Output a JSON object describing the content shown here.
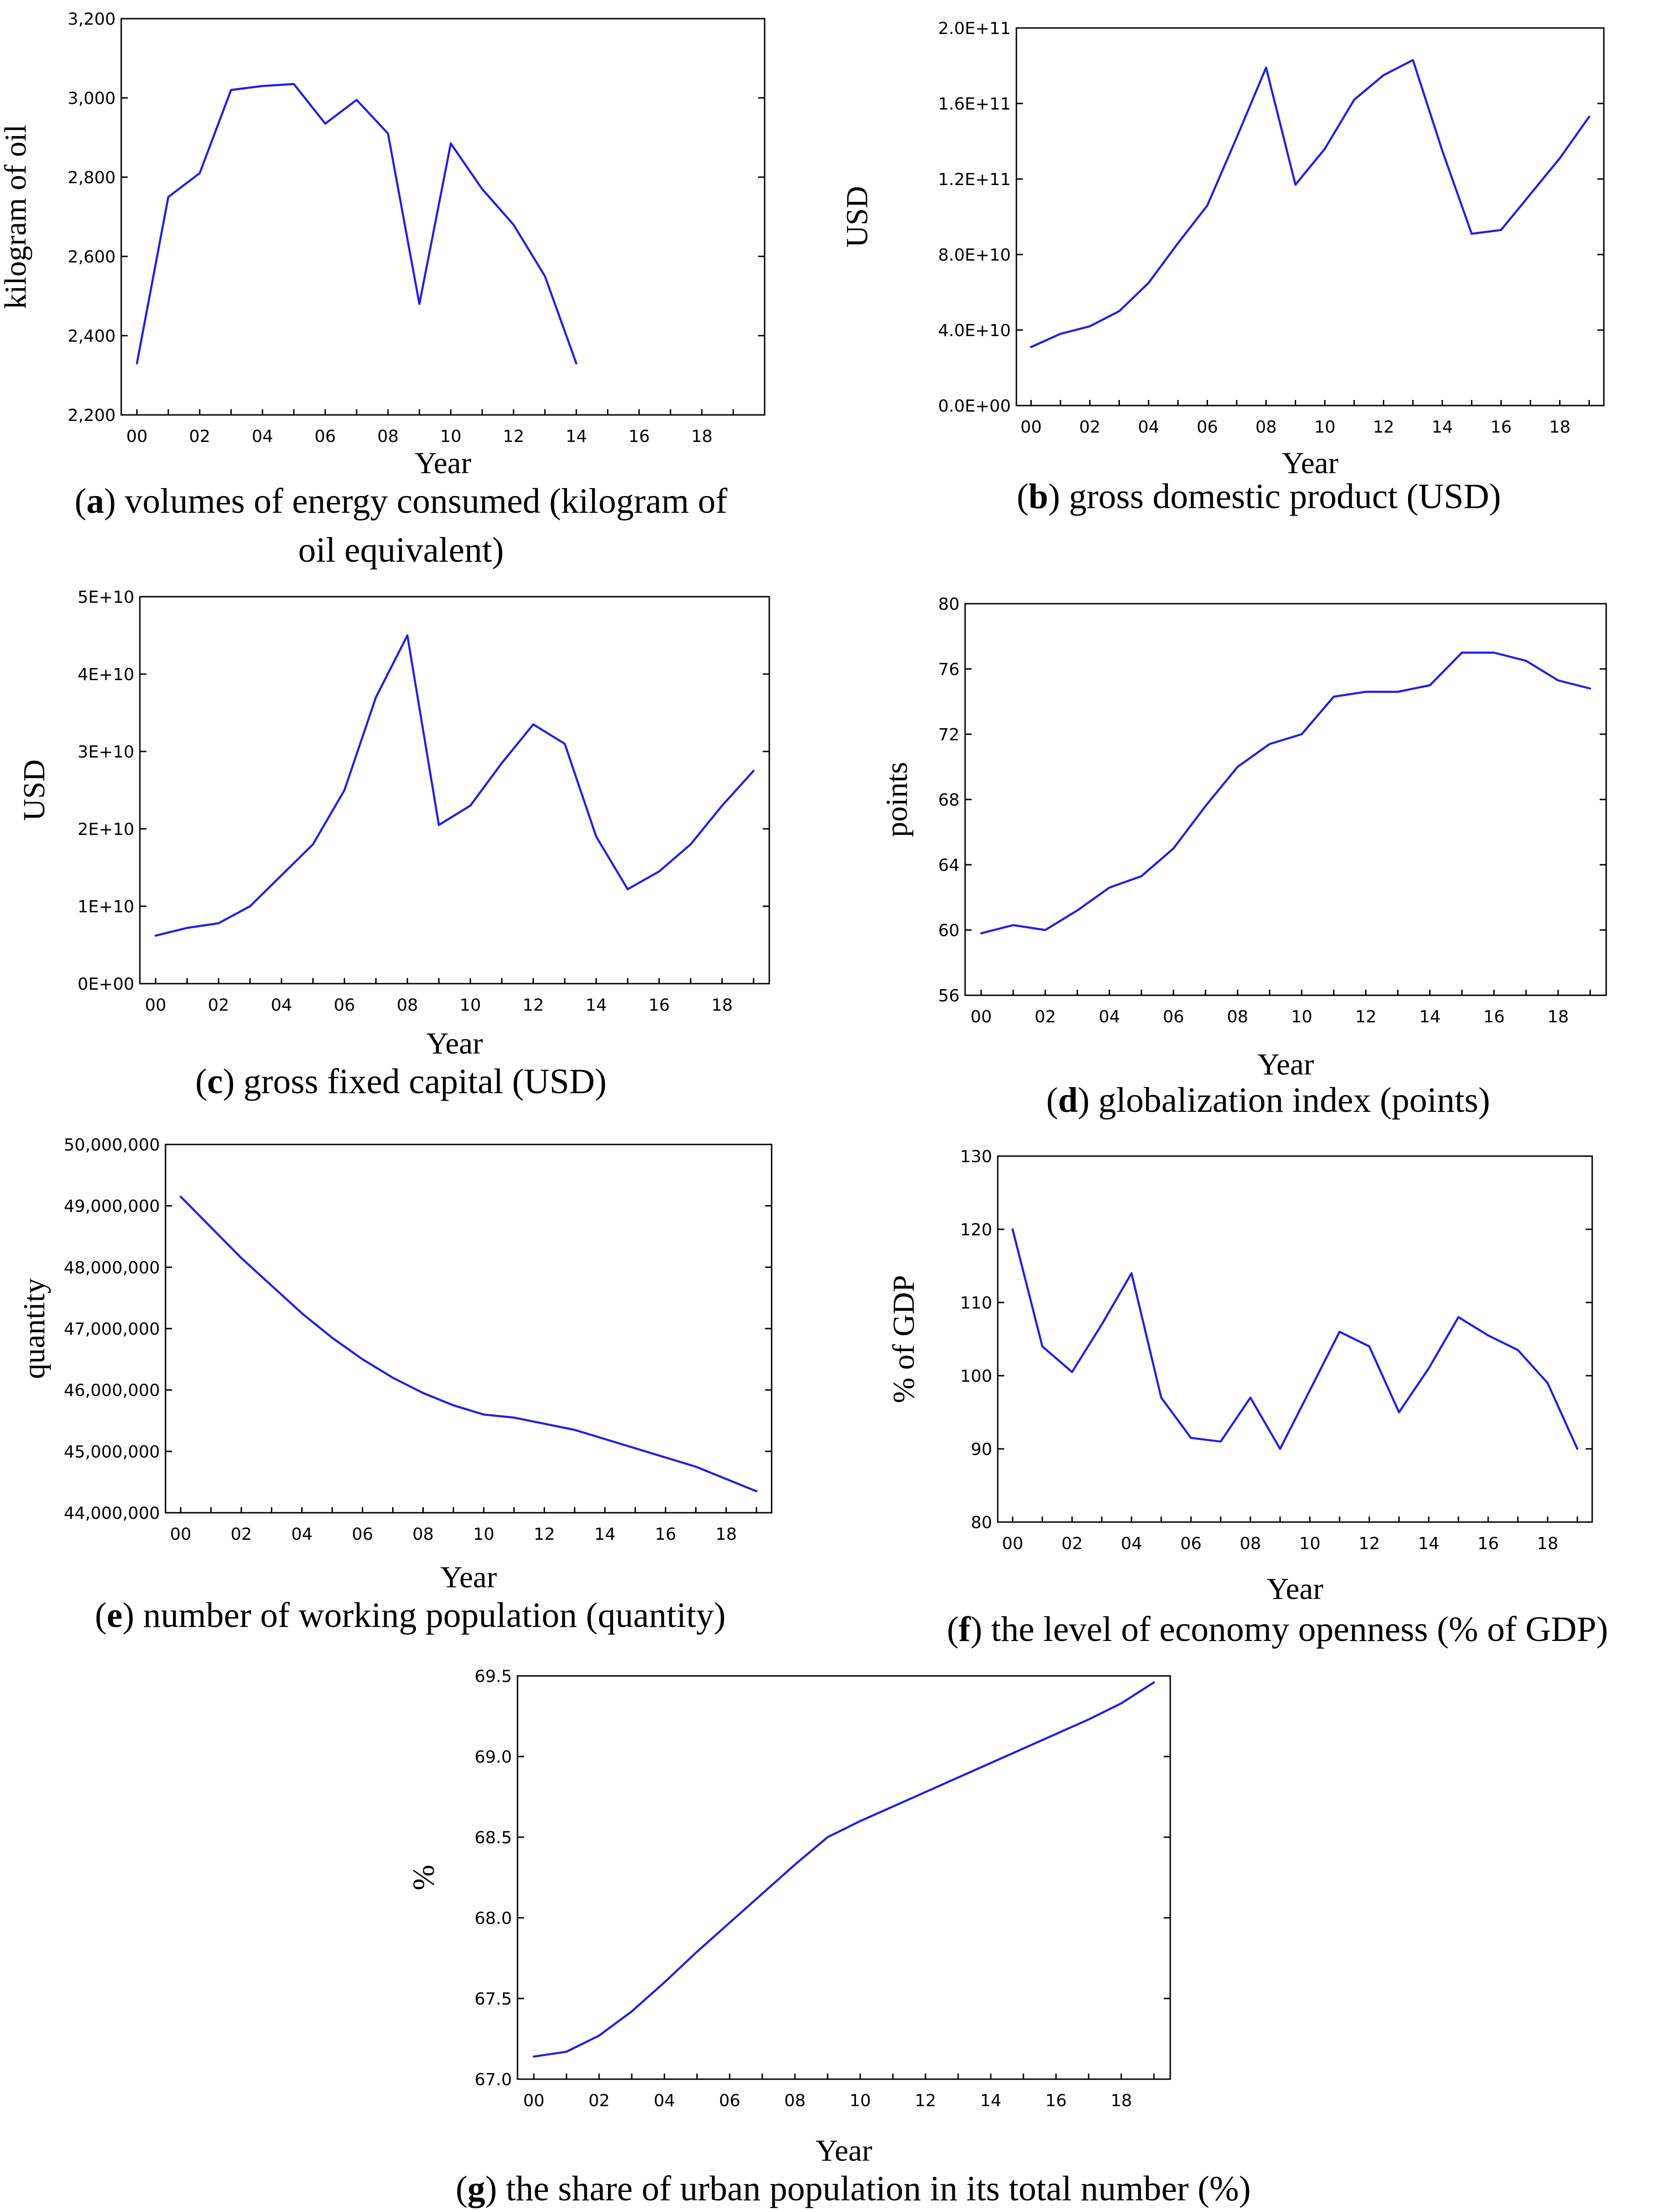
{
  "figure": {
    "colors": {
      "series": "#1f1fe6",
      "axis": "#000000",
      "background": "#ffffff"
    }
  },
  "chart_data": [
    {
      "id": "a",
      "type": "line",
      "xlabel": "Year",
      "ylabel": "kilogram of oil",
      "caption": {
        "letter": "a",
        "lines": [
          ") volumes of energy consumed (kilogram of",
          "oil equivalent)"
        ]
      },
      "x": [
        "00",
        "01",
        "02",
        "03",
        "04",
        "05",
        "06",
        "07",
        "08",
        "09",
        "10",
        "11",
        "12",
        "13",
        "14"
      ],
      "values": [
        2330,
        2750,
        2810,
        3020,
        3030,
        3035,
        2935,
        2995,
        2910,
        2480,
        2885,
        2770,
        2680,
        2550,
        2330
      ],
      "xticks": [
        "00",
        "02",
        "04",
        "06",
        "08",
        "10",
        "12",
        "14",
        "16",
        "18"
      ],
      "yticks": [
        "2,200",
        "2,400",
        "2,600",
        "2,800",
        "3,000",
        "3,200"
      ],
      "ylim": [
        2200,
        3200
      ],
      "xlim": [
        -0.5,
        20
      ]
    },
    {
      "id": "b",
      "type": "line",
      "xlabel": "Year",
      "ylabel": "USD",
      "caption": {
        "letter": "b",
        "lines": [
          ") gross domestic product (USD)"
        ]
      },
      "x": [
        "00",
        "01",
        "02",
        "03",
        "04",
        "05",
        "06",
        "07",
        "08",
        "09",
        "10",
        "11",
        "12",
        "13",
        "14",
        "15",
        "16",
        "17",
        "18",
        "19"
      ],
      "values": [
        31000000000.0,
        38000000000.0,
        42000000000.0,
        50000000000.0,
        65000000000.0,
        86000000000.0,
        106000000000.0,
        142000000000.0,
        179000000000.0,
        117000000000.0,
        136000000000.0,
        162000000000.0,
        175000000000.0,
        183000000000.0,
        135000000000.0,
        91000000000.0,
        93000000000.0,
        112000000000.0,
        131000000000.0,
        153000000000.0
      ],
      "xticks": [
        "00",
        "02",
        "04",
        "06",
        "08",
        "10",
        "12",
        "14",
        "16",
        "18"
      ],
      "yticks": [
        "0.0E+00",
        "4.0E+10",
        "8.0E+10",
        "1.2E+11",
        "1.6E+11",
        "2.0E+11"
      ],
      "ylim": [
        0,
        200000000000.0
      ],
      "xlim": [
        -0.5,
        19.5
      ]
    },
    {
      "id": "c",
      "type": "line",
      "xlabel": "Year",
      "ylabel": "USD",
      "caption": {
        "letter": "c",
        "lines": [
          ") gross fixed capital (USD)"
        ]
      },
      "x": [
        "00",
        "01",
        "02",
        "03",
        "04",
        "05",
        "06",
        "07",
        "08",
        "09",
        "10",
        "11",
        "12",
        "13",
        "14",
        "15",
        "16",
        "17",
        "18",
        "19"
      ],
      "values": [
        6200000000.0,
        7200000000.0,
        7800000000.0,
        10000000000.0,
        14000000000.0,
        18000000000.0,
        25000000000.0,
        37000000000.0,
        45000000000.0,
        20500000000.0,
        23000000000.0,
        28500000000.0,
        33500000000.0,
        31000000000.0,
        19000000000.0,
        12200000000.0,
        14500000000.0,
        18000000000.0,
        23000000000.0,
        27500000000.0
      ],
      "xticks": [
        "00",
        "02",
        "04",
        "06",
        "08",
        "10",
        "12",
        "14",
        "16",
        "18"
      ],
      "yticks": [
        "0E+00",
        "1E+10",
        "2E+10",
        "3E+10",
        "4E+10",
        "5E+10"
      ],
      "ylim": [
        0,
        50000000000.0
      ],
      "xlim": [
        -0.5,
        19.5
      ]
    },
    {
      "id": "d",
      "type": "line",
      "xlabel": "Year",
      "ylabel": "points",
      "caption": {
        "letter": "d",
        "lines": [
          ") globalization index (points)"
        ]
      },
      "x": [
        "00",
        "01",
        "02",
        "03",
        "04",
        "05",
        "06",
        "07",
        "08",
        "09",
        "10",
        "11",
        "12",
        "13",
        "14",
        "15",
        "16",
        "17",
        "18",
        "19"
      ],
      "values": [
        59.8,
        60.3,
        60.0,
        61.2,
        62.6,
        63.3,
        65.0,
        67.6,
        70.0,
        71.4,
        72.0,
        74.3,
        74.6,
        74.6,
        75.0,
        77.0,
        77.0,
        76.5,
        75.3,
        74.8
      ],
      "xticks": [
        "00",
        "02",
        "04",
        "06",
        "08",
        "10",
        "12",
        "14",
        "16",
        "18"
      ],
      "yticks": [
        "56",
        "60",
        "64",
        "68",
        "72",
        "76",
        "80"
      ],
      "ylim": [
        56,
        80
      ],
      "xlim": [
        -0.5,
        19.5
      ]
    },
    {
      "id": "e",
      "type": "line",
      "xlabel": "Year",
      "ylabel": "quantity",
      "caption": {
        "letter": "e",
        "lines": [
          ") number of working population (quantity)"
        ]
      },
      "x": [
        "00",
        "01",
        "02",
        "03",
        "04",
        "05",
        "06",
        "07",
        "08",
        "09",
        "10",
        "11",
        "12",
        "13",
        "14",
        "15",
        "16",
        "17",
        "18",
        "19"
      ],
      "values": [
        49150000,
        48650000,
        48150000,
        47700000,
        47250000,
        46850000,
        46500000,
        46200000,
        45950000,
        45750000,
        45600000,
        45550000,
        45450000,
        45350000,
        45200000,
        45050000,
        44900000,
        44750000,
        44550000,
        44350000
      ],
      "xticks": [
        "00",
        "02",
        "04",
        "06",
        "08",
        "10",
        "12",
        "14",
        "16",
        "18"
      ],
      "yticks": [
        "44,000,000",
        "45,000,000",
        "46,000,000",
        "47,000,000",
        "48,000,000",
        "49,000,000",
        "50,000,000"
      ],
      "ylim": [
        44000000,
        50000000
      ],
      "xlim": [
        -0.5,
        19.5
      ]
    },
    {
      "id": "f",
      "type": "line",
      "xlabel": "Year",
      "ylabel": "% of GDP",
      "caption": {
        "letter": "f",
        "lines": [
          ") the level of economy openness (% of GDP)"
        ]
      },
      "x": [
        "00",
        "01",
        "02",
        "03",
        "04",
        "05",
        "06",
        "07",
        "08",
        "09",
        "10",
        "11",
        "12",
        "13",
        "14",
        "15",
        "16",
        "17",
        "18",
        "19"
      ],
      "values": [
        120,
        104,
        100.5,
        107,
        114,
        97,
        91.5,
        91,
        97,
        90,
        98,
        106,
        104,
        95,
        101,
        108,
        105.5,
        103.5,
        99,
        90
      ],
      "xticks": [
        "00",
        "02",
        "04",
        "06",
        "08",
        "10",
        "12",
        "14",
        "16",
        "18"
      ],
      "yticks": [
        "80",
        "90",
        "100",
        "110",
        "120",
        "130"
      ],
      "ylim": [
        80,
        130
      ],
      "xlim": [
        -0.5,
        19.5
      ]
    },
    {
      "id": "g",
      "type": "line",
      "xlabel": "Year",
      "ylabel": "%",
      "caption": {
        "letter": "g",
        "lines": [
          ") the share of urban population in its total number (%)"
        ]
      },
      "x": [
        "00",
        "01",
        "02",
        "03",
        "04",
        "05",
        "06",
        "07",
        "08",
        "09",
        "10",
        "11",
        "12",
        "13",
        "14",
        "15",
        "16",
        "17",
        "18",
        "19"
      ],
      "values": [
        67.14,
        67.17,
        67.27,
        67.42,
        67.6,
        67.79,
        67.97,
        68.15,
        68.33,
        68.5,
        68.6,
        68.69,
        68.78,
        68.87,
        68.96,
        69.05,
        69.14,
        69.23,
        69.33,
        69.46
      ],
      "xticks": [
        "00",
        "02",
        "04",
        "06",
        "08",
        "10",
        "12",
        "14",
        "16",
        "18"
      ],
      "yticks": [
        "67.0",
        "67.5",
        "68.0",
        "68.5",
        "69.0",
        "69.5"
      ],
      "ylim": [
        67.0,
        69.5
      ],
      "xlim": [
        -0.5,
        19.5
      ]
    }
  ]
}
